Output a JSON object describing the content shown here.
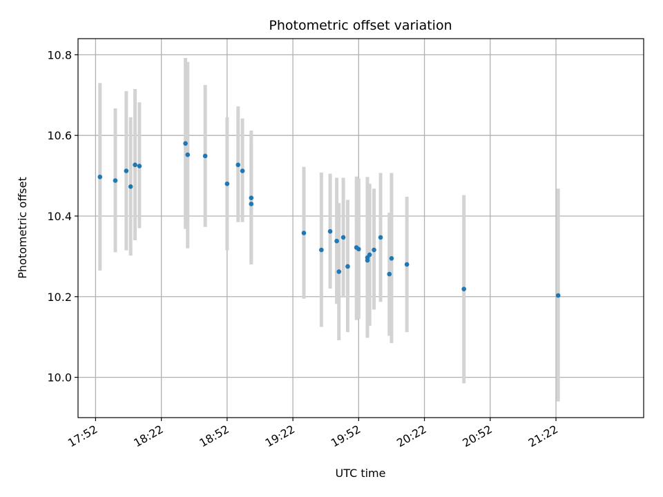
{
  "chart_data": {
    "type": "scatter",
    "title": "Photometric offset variation",
    "xlabel": "UTC time",
    "ylabel": "Photometric offset",
    "x_axis_kind": "time",
    "xlim": [
      "17:52",
      "21:52"
    ],
    "x_view": [
      "17:44",
      "22:02"
    ],
    "ylim": [
      9.9,
      10.84
    ],
    "x_ticks": [
      "17:52",
      "18:22",
      "18:52",
      "19:22",
      "19:52",
      "20:22",
      "20:52",
      "21:22"
    ],
    "y_ticks": [
      10.0,
      10.2,
      10.4,
      10.6,
      10.8
    ],
    "y_tick_labels": [
      "10.0",
      "10.2",
      "10.4",
      "10.6",
      "10.8"
    ],
    "grid": true,
    "colors": {
      "point": "#1f77b4",
      "error_bar": "#d3d3d3",
      "grid": "#b0b0b0"
    },
    "series": [
      {
        "points": [
          {
            "x": "17:54",
            "y": 10.497,
            "err_lo": 10.265,
            "err_hi": 10.73
          },
          {
            "x": "18:01",
            "y": 10.488,
            "err_lo": 10.31,
            "err_hi": 10.667
          },
          {
            "x": "18:06",
            "y": 10.512,
            "err_lo": 10.315,
            "err_hi": 10.71
          },
          {
            "x": "18:08",
            "y": 10.473,
            "err_lo": 10.302,
            "err_hi": 10.645
          },
          {
            "x": "18:10",
            "y": 10.527,
            "err_lo": 10.34,
            "err_hi": 10.715
          },
          {
            "x": "18:12",
            "y": 10.524,
            "err_lo": 10.37,
            "err_hi": 10.682
          },
          {
            "x": "18:33",
            "y": 10.58,
            "err_lo": 10.368,
            "err_hi": 10.792
          },
          {
            "x": "18:34",
            "y": 10.552,
            "err_lo": 10.32,
            "err_hi": 10.782
          },
          {
            "x": "18:42",
            "y": 10.549,
            "err_lo": 10.373,
            "err_hi": 10.725
          },
          {
            "x": "18:52",
            "y": 10.48,
            "err_lo": 10.315,
            "err_hi": 10.645
          },
          {
            "x": "18:57",
            "y": 10.527,
            "err_lo": 10.385,
            "err_hi": 10.672
          },
          {
            "x": "18:59",
            "y": 10.512,
            "err_lo": 10.385,
            "err_hi": 10.642
          },
          {
            "x": "19:03",
            "y": 10.43,
            "err_lo": 10.28,
            "err_hi": 10.582
          },
          {
            "x": "19:03",
            "y": 10.445,
            "err_lo": 10.285,
            "err_hi": 10.612
          },
          {
            "x": "19:27",
            "y": 10.358,
            "err_lo": 10.195,
            "err_hi": 10.522
          },
          {
            "x": "19:35",
            "y": 10.316,
            "err_lo": 10.125,
            "err_hi": 10.508
          },
          {
            "x": "19:39",
            "y": 10.362,
            "err_lo": 10.22,
            "err_hi": 10.505
          },
          {
            "x": "19:42",
            "y": 10.338,
            "err_lo": 10.182,
            "err_hi": 10.495
          },
          {
            "x": "19:43",
            "y": 10.262,
            "err_lo": 10.092,
            "err_hi": 10.432
          },
          {
            "x": "19:45",
            "y": 10.347,
            "err_lo": 10.198,
            "err_hi": 10.495
          },
          {
            "x": "19:47",
            "y": 10.275,
            "err_lo": 10.112,
            "err_hi": 10.44
          },
          {
            "x": "19:51",
            "y": 10.322,
            "err_lo": 10.142,
            "err_hi": 10.498
          },
          {
            "x": "19:52",
            "y": 10.318,
            "err_lo": 10.145,
            "err_hi": 10.493
          },
          {
            "x": "19:56",
            "y": 10.297,
            "err_lo": 10.098,
            "err_hi": 10.497
          },
          {
            "x": "19:56",
            "y": 10.29,
            "err_lo": 10.112,
            "err_hi": 10.485
          },
          {
            "x": "19:57",
            "y": 10.304,
            "err_lo": 10.128,
            "err_hi": 10.48
          },
          {
            "x": "19:59",
            "y": 10.316,
            "err_lo": 10.168,
            "err_hi": 10.468
          },
          {
            "x": "20:02",
            "y": 10.347,
            "err_lo": 10.187,
            "err_hi": 10.507
          },
          {
            "x": "20:06",
            "y": 10.256,
            "err_lo": 10.103,
            "err_hi": 10.408
          },
          {
            "x": "20:07",
            "y": 10.295,
            "err_lo": 10.085,
            "err_hi": 10.507
          },
          {
            "x": "20:14",
            "y": 10.28,
            "err_lo": 10.112,
            "err_hi": 10.448
          },
          {
            "x": "20:40",
            "y": 10.219,
            "err_lo": 9.985,
            "err_hi": 10.452
          },
          {
            "x": "21:23",
            "y": 10.203,
            "err_lo": 9.94,
            "err_hi": 10.468
          }
        ]
      }
    ]
  }
}
